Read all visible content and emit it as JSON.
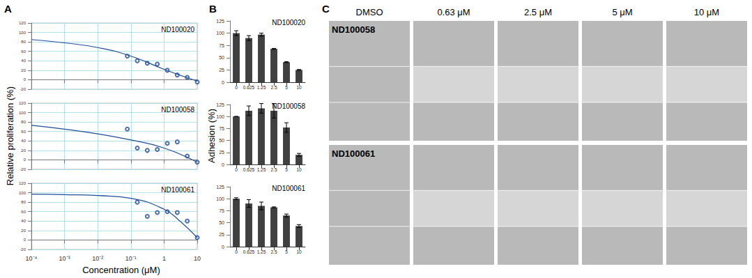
{
  "panel_labels": [
    "A",
    "B",
    "C"
  ],
  "axis_titles": {
    "A": {
      "x": "Concentration (μM)",
      "y": "Relative proliferation (%)"
    },
    "B": {
      "y": "Adhesion (%)"
    }
  },
  "chart_data": [
    {
      "panel": "A",
      "type": "scatter",
      "title": "ND100020",
      "x": [
        0.078,
        0.156,
        0.3125,
        0.625,
        1.25,
        2.5,
        5,
        10
      ],
      "values": [
        50,
        40,
        35,
        33,
        20,
        10,
        5,
        -5
      ],
      "fit": {
        "x": [
          0.0001,
          0.001,
          0.01,
          0.1,
          1,
          10
        ],
        "values": [
          85,
          78,
          68,
          50,
          22,
          -3
        ]
      },
      "xlim": [
        0.0001,
        10
      ],
      "xticks": [
        {
          "value": 0.0001,
          "label": "10⁻⁴"
        },
        {
          "value": 0.001,
          "label": "10⁻³"
        },
        {
          "value": 0.01,
          "label": "10⁻²"
        },
        {
          "value": 0.1,
          "label": "10⁻¹"
        },
        1,
        10
      ],
      "ylim": [
        -20,
        120
      ],
      "yticks": [
        -20,
        0,
        20,
        40,
        60,
        80,
        100,
        120
      ],
      "log": "x",
      "grid": true,
      "tick_labels": "y",
      "color": "#1f4e9a",
      "marker": "circle"
    },
    {
      "panel": "A",
      "type": "scatter",
      "title": "ND100058",
      "x": [
        0.078,
        0.156,
        0.3125,
        0.625,
        1.25,
        2.5,
        5,
        10
      ],
      "values": [
        65,
        25,
        20,
        22,
        35,
        38,
        8,
        -5
      ],
      "fit": {
        "x": [
          0.0001,
          0.001,
          0.01,
          0.1,
          1,
          10
        ],
        "values": [
          73,
          65,
          55,
          42,
          25,
          -5
        ]
      },
      "xlim": [
        0.0001,
        10
      ],
      "xticks": [
        {
          "value": 0.0001,
          "label": "10⁻⁴"
        },
        {
          "value": 0.001,
          "label": "10⁻³"
        },
        {
          "value": 0.01,
          "label": "10⁻²"
        },
        {
          "value": 0.1,
          "label": "10⁻¹"
        },
        1,
        10
      ],
      "ylim": [
        -20,
        120
      ],
      "yticks": [
        -20,
        0,
        20,
        40,
        60,
        80,
        100,
        120
      ],
      "log": "x",
      "grid": true,
      "tick_labels": "y",
      "color": "#1f4e9a",
      "marker": "circle"
    },
    {
      "panel": "A",
      "type": "scatter",
      "title": "ND100061",
      "x": [
        0.156,
        0.3125,
        0.625,
        1.25,
        2.5,
        5,
        10
      ],
      "values": [
        80,
        50,
        58,
        60,
        58,
        40,
        5
      ],
      "fit": {
        "x": [
          0.0001,
          0.001,
          0.01,
          0.1,
          1,
          3,
          10
        ],
        "values": [
          97,
          96,
          94,
          88,
          65,
          40,
          5
        ]
      },
      "xlim": [
        0.0001,
        10
      ],
      "xticks": [
        {
          "value": 0.0001,
          "label": "10⁻⁴"
        },
        {
          "value": 0.001,
          "label": "10⁻³"
        },
        {
          "value": 0.01,
          "label": "10⁻²"
        },
        {
          "value": 0.1,
          "label": "10⁻¹"
        },
        1,
        10
      ],
      "ylim": [
        -20,
        120
      ],
      "yticks": [
        -20,
        0,
        20,
        40,
        60,
        80,
        100,
        120
      ],
      "log": "x",
      "grid": true,
      "color": "#1f4e9a",
      "marker": "circle"
    },
    {
      "panel": "B",
      "type": "bar",
      "title": "ND100020",
      "categories": [
        "0",
        "0.625",
        "1.25",
        "2.5",
        "5",
        "10"
      ],
      "values": [
        100,
        90,
        97,
        68,
        41,
        25
      ],
      "errors": [
        5,
        5,
        3,
        1,
        1,
        1
      ],
      "ylim": [
        0,
        125
      ],
      "yticks": [
        0,
        25,
        50,
        75,
        100,
        125
      ],
      "grid": false,
      "color": "#404040"
    },
    {
      "panel": "B",
      "type": "bar",
      "title": "ND100058",
      "categories": [
        "0",
        "0.625",
        "1.25",
        "2.5",
        "5",
        "10"
      ],
      "values": [
        100,
        112,
        117,
        112,
        77,
        20
      ],
      "errors": [
        0,
        10,
        10,
        15,
        10,
        3
      ],
      "ylim": [
        0,
        125
      ],
      "yticks": [
        0,
        25,
        50,
        75,
        100,
        125
      ],
      "grid": false,
      "color": "#404040"
    },
    {
      "panel": "B",
      "type": "bar",
      "title": "ND100061",
      "categories": [
        "0",
        "0.625",
        "1.25",
        "2.5",
        "5",
        "10"
      ],
      "values": [
        100,
        90,
        85,
        82,
        65,
        43
      ],
      "errors": [
        2,
        8,
        8,
        1,
        3,
        3
      ],
      "ylim": [
        0,
        125
      ],
      "yticks": [
        0,
        25,
        50,
        75,
        100,
        125
      ],
      "grid": false,
      "color": "#404040"
    }
  ],
  "image_panel": {
    "columns": [
      "DMSO",
      "0.63 μM",
      "2.5 μM",
      "5 μM",
      "10 μM"
    ],
    "rows": [
      "ND100058",
      "ND100061"
    ]
  }
}
